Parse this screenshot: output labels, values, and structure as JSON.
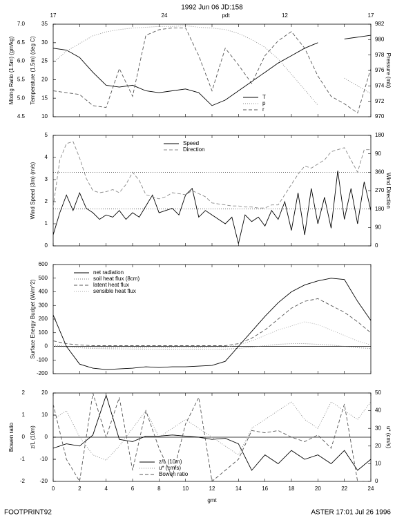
{
  "title": "1992 Jun 06 JD:158",
  "footer": {
    "left": "FOOTPRINT92",
    "right": "ASTER 17:01 Jul 26 1996"
  },
  "chart_data": [
    {
      "type": "line",
      "xlim": [
        0,
        24
      ],
      "xticks": [
        0,
        2,
        4,
        6,
        8,
        10,
        12,
        14,
        16,
        18,
        20,
        22,
        24
      ],
      "x2ticks": [
        {
          "value": 0,
          "label": "17"
        },
        {
          "value": 8.4,
          "label": "24"
        },
        {
          "value": 17.5,
          "label": "12"
        },
        {
          "value": 24,
          "label": "17"
        }
      ],
      "x2label": "pdt",
      "ylabel": "Temperature (1.5m) (deg C)",
      "ylim": [
        10,
        35
      ],
      "yticks": [
        10,
        15,
        20,
        25,
        30,
        35
      ],
      "y3label": "Mixing Ratio (1.5m) (gm/kg)",
      "y3lim": [
        4.5,
        7
      ],
      "y3ticks": [
        4.5,
        {
          "value": 5,
          "label": "5.0"
        },
        5.5,
        {
          "value": 6,
          "label": "6.0"
        },
        6.5,
        {
          "value": 7,
          "label": "7.0"
        }
      ],
      "y2label": "Pressure (mb)",
      "y2lim": [
        970,
        982
      ],
      "y2ticks": [
        970,
        972,
        974,
        976,
        978,
        980,
        982
      ],
      "legend": "lower right",
      "x": [
        0,
        1,
        2,
        3,
        4,
        5,
        6,
        7,
        8,
        9,
        10,
        11,
        12,
        13,
        14,
        15,
        16,
        17,
        18,
        19,
        20,
        21,
        22,
        23,
        24
      ],
      "series": [
        {
          "name": "T",
          "axis": "y",
          "color": "#000000",
          "dash": "solid",
          "values": [
            28.5,
            28,
            26,
            22,
            18.5,
            18,
            18.5,
            17,
            16.5,
            17,
            17.5,
            16.5,
            13,
            14.5,
            17,
            19.5,
            22,
            24.5,
            26.5,
            28.5,
            30,
            null,
            31,
            31.5,
            32
          ]
        },
        {
          "name": "p",
          "axis": "y2",
          "color": "#888888",
          "dash": "dotted",
          "values": [
            977,
            978.5,
            979.5,
            980.5,
            981,
            981.3,
            981.5,
            981.6,
            981.7,
            981.7,
            981.8,
            981.6,
            981.5,
            981.3,
            980.8,
            980,
            979,
            977.5,
            975.5,
            973.5,
            971.5,
            null,
            975,
            974,
            973
          ]
        },
        {
          "name": "r",
          "axis": "y3",
          "color": "#555555",
          "dash": "dashed",
          "values": [
            5.2,
            5.15,
            5.1,
            4.8,
            4.75,
            5.8,
            5.05,
            6.7,
            6.85,
            6.9,
            6.9,
            6.15,
            5.2,
            6.35,
            5.9,
            5.4,
            6.15,
            6.55,
            6.8,
            6.35,
            5.6,
            5.05,
            4.85,
            4.6,
            5.8
          ]
        }
      ]
    },
    {
      "type": "line",
      "xlim": [
        0,
        24
      ],
      "xticks": [
        0,
        2,
        4,
        6,
        8,
        10,
        12,
        14,
        16,
        18,
        20,
        22,
        24
      ],
      "ylabel": "Wind Speed (3m) (m/s)",
      "ylim": [
        0,
        5
      ],
      "yticks": [
        0,
        1,
        2,
        3,
        4,
        5
      ],
      "y2label": "Wind Direction",
      "y2lim": [
        0,
        540
      ],
      "y2ticks": [
        0,
        90,
        180,
        270,
        360,
        {
          "value": 450,
          "label": "90"
        },
        {
          "value": 540,
          "label": "180"
        }
      ],
      "y2reflines": [
        180,
        360
      ],
      "legend": "upper center",
      "x": [
        0,
        0.5,
        1,
        1.5,
        2,
        2.5,
        3,
        3.5,
        4,
        4.5,
        5,
        5.5,
        6,
        6.5,
        7,
        7.5,
        8,
        8.5,
        9,
        9.5,
        10,
        10.5,
        11,
        11.5,
        12,
        12.5,
        13,
        13.5,
        14,
        14.5,
        15,
        15.5,
        16,
        16.5,
        17,
        17.5,
        18,
        18.5,
        19,
        19.5,
        20,
        20.5,
        21,
        21.5,
        22,
        22.5,
        23,
        23.5,
        24
      ],
      "series": [
        {
          "name": "Speed",
          "axis": "y",
          "color": "#000000",
          "dash": "solid",
          "values": [
            0.5,
            1.5,
            2.3,
            1.6,
            2.4,
            1.7,
            1.5,
            1.2,
            1.4,
            1.3,
            1.6,
            1.2,
            1.5,
            1.3,
            1.8,
            2.3,
            1.5,
            1.6,
            1.7,
            1.4,
            2.3,
            2.6,
            1.3,
            1.6,
            1.4,
            1.2,
            1.0,
            1.3,
            0.1,
            1.4,
            1.1,
            1.3,
            0.9,
            1.6,
            1.2,
            2.0,
            0.7,
            2.4,
            0.5,
            2.6,
            1.0,
            2.2,
            0.8,
            3.4,
            1.2,
            2.6,
            1.0,
            2.9,
            1.6
          ]
        },
        {
          "name": "Direction",
          "axis": "y2",
          "color": "#888888",
          "dash": "dashed",
          "values": [
            190,
            420,
            500,
            510,
            430,
            330,
            270,
            260,
            265,
            275,
            260,
            300,
            360,
            320,
            250,
            240,
            230,
            240,
            260,
            255,
            250,
            270,
            255,
            240,
            210,
            205,
            200,
            195,
            195,
            190,
            190,
            185,
            185,
            200,
            200,
            250,
            300,
            350,
            390,
            380,
            400,
            420,
            460,
            470,
            480,
            420,
            360,
            470,
            470
          ]
        }
      ]
    },
    {
      "type": "line",
      "xlim": [
        0,
        24
      ],
      "xticks": [
        0,
        2,
        4,
        6,
        8,
        10,
        12,
        14,
        16,
        18,
        20,
        22,
        24
      ],
      "ylabel": "Surface Energy Budget (W/m^2)",
      "ylim": [
        -200,
        600
      ],
      "yticks": [
        -200,
        -100,
        0,
        100,
        200,
        300,
        400,
        500,
        600
      ],
      "zero_line": true,
      "legend": "upper left",
      "x": [
        0,
        1,
        2,
        3,
        4,
        5,
        6,
        7,
        8,
        9,
        10,
        11,
        12,
        13,
        14,
        15,
        16,
        17,
        18,
        19,
        20,
        21,
        22,
        23,
        24
      ],
      "series": [
        {
          "name": "net radiation",
          "axis": "y",
          "color": "#000000",
          "dash": "solid",
          "values": [
            230,
            0,
            -130,
            -160,
            -170,
            -165,
            -160,
            -150,
            -155,
            -150,
            -150,
            -145,
            -140,
            -110,
            0,
            110,
            220,
            320,
            400,
            450,
            480,
            500,
            490,
            330,
            190
          ]
        },
        {
          "name": "soil heat flux (8cm)",
          "axis": "y",
          "color": "#777777",
          "dash": "dotted",
          "values": [
            10,
            0,
            -10,
            -15,
            -17,
            -18,
            -19,
            -20,
            -20,
            -20,
            -20,
            -20,
            -20,
            -20,
            -15,
            -5,
            5,
            15,
            20,
            20,
            15,
            10,
            0,
            -10,
            -15
          ]
        },
        {
          "name": "latent heat flux",
          "axis": "y",
          "color": "#555555",
          "dash": "dashed",
          "values": [
            40,
            20,
            10,
            5,
            5,
            5,
            5,
            5,
            5,
            5,
            5,
            5,
            5,
            5,
            20,
            60,
            120,
            200,
            280,
            330,
            350,
            300,
            250,
            180,
            100
          ]
        },
        {
          "name": "sensible heat flux",
          "axis": "y",
          "color": "#aaaaaa",
          "dash": "dotted",
          "values": [
            0,
            -5,
            -10,
            -10,
            -10,
            -10,
            -10,
            -10,
            -10,
            -10,
            -10,
            -10,
            -10,
            -5,
            10,
            40,
            80,
            120,
            150,
            180,
            160,
            120,
            80,
            40,
            10
          ]
        }
      ]
    },
    {
      "type": "line",
      "xlim": [
        0,
        24
      ],
      "xticks": [
        0,
        2,
        4,
        6,
        8,
        10,
        12,
        14,
        16,
        18,
        20,
        22,
        24
      ],
      "xlabel": "gmt",
      "ylabel": "z/L (10m)",
      "ylim": [
        -20,
        20
      ],
      "yticks": [
        -20,
        -10,
        0,
        10,
        20
      ],
      "y3label": "Bowen ratio",
      "y3lim": [
        -2,
        2
      ],
      "y3ticks": [
        -2,
        -1,
        0,
        1,
        2
      ],
      "y2label": "u* (cm/s)",
      "y2lim": [
        0,
        50
      ],
      "y2ticks": [
        0,
        10,
        20,
        30,
        40,
        50
      ],
      "zero_line": true,
      "legend": "lower center",
      "x": [
        0,
        1,
        2,
        3,
        4,
        5,
        6,
        7,
        8,
        9,
        10,
        11,
        12,
        13,
        14,
        15,
        16,
        17,
        18,
        19,
        20,
        21,
        22,
        23,
        24
      ],
      "series": [
        {
          "name": "z/L (10m)",
          "axis": "y",
          "color": "#000000",
          "dash": "solid",
          "values": [
            -5,
            -3,
            -4,
            1,
            19,
            -1,
            -2,
            0.5,
            0.5,
            1,
            0.5,
            0,
            -1,
            -0.5,
            -3,
            -15,
            -8,
            -12,
            -6,
            -10,
            -8,
            -12,
            -6,
            -15,
            -10
          ]
        },
        {
          "name": "u* (cm/s)",
          "axis": "y2",
          "color": "#888888",
          "dash": "dotted",
          "values": [
            35,
            40,
            25,
            15,
            12,
            20,
            30,
            40,
            25,
            30,
            35,
            30,
            25,
            20,
            15,
            30,
            35,
            40,
            45,
            35,
            30,
            45,
            40,
            35,
            45
          ]
        },
        {
          "name": "Bowen ratio",
          "axis": "y3",
          "color": "#555555",
          "dash": "dashed",
          "values": [
            1.5,
            -1,
            -2,
            2,
            0,
            1.8,
            -1.5,
            1.2,
            -0.5,
            -1.8,
            0.6,
            1.8,
            -2,
            -1.5,
            -1,
            0.3,
            0.2,
            0.3,
            0,
            -0.2,
            0.1,
            -0.5,
            1.5,
            -2,
            -2
          ]
        }
      ]
    }
  ]
}
